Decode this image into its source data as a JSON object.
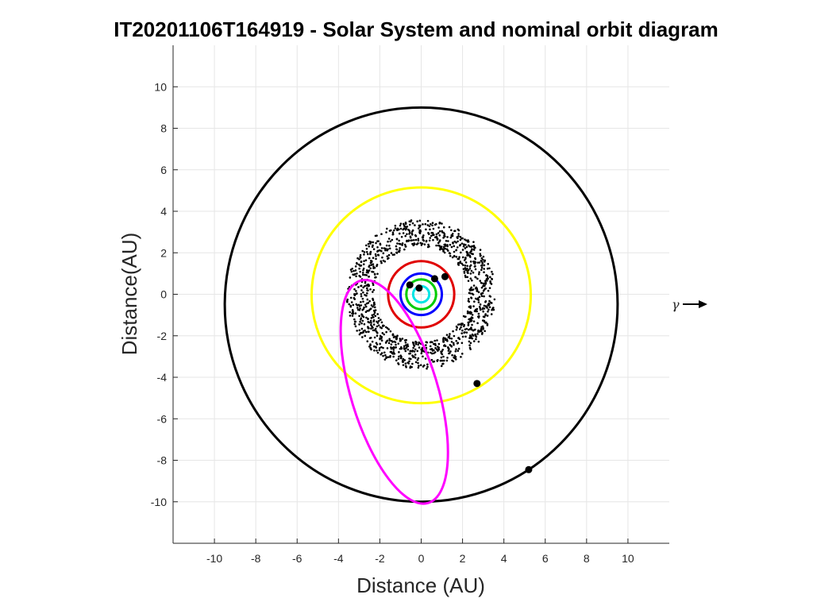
{
  "chart_data": {
    "type": "scatter",
    "title": "IT20201106T164919 - Solar System and nominal orbit diagram",
    "xlabel": "Distance (AU)",
    "ylabel": "Distance(AU)",
    "xlim": [
      -12,
      12
    ],
    "ylim": [
      -12,
      12
    ],
    "xticks": [
      -10,
      -8,
      -6,
      -4,
      -2,
      0,
      2,
      4,
      6,
      8,
      10
    ],
    "yticks": [
      -10,
      -8,
      -6,
      -4,
      -2,
      0,
      2,
      4,
      6,
      8,
      10
    ],
    "grid": true,
    "direction_marker": "γ",
    "orbits": [
      {
        "color": "#00e5e5",
        "center": [
          0,
          0
        ],
        "rx": 0.39,
        "ry": 0.39
      },
      {
        "color": "#00cc00",
        "center": [
          0,
          0
        ],
        "rx": 0.72,
        "ry": 0.72
      },
      {
        "color": "#0000ff",
        "center": [
          0,
          0
        ],
        "rx": 1.0,
        "ry": 1.0
      },
      {
        "color": "#e00000",
        "center": [
          0,
          0
        ],
        "rx": 1.6,
        "ry": 1.6
      },
      {
        "color": "#ffff00",
        "center": [
          0,
          -0.05
        ],
        "rx": 5.3,
        "ry": 5.2
      },
      {
        "color": "#000000",
        "center": [
          0,
          -0.5
        ],
        "rx": 9.5,
        "ry": 9.5
      },
      {
        "color": "#ff00ff",
        "center": [
          -1.3,
          -4.7
        ],
        "rx": 2.1,
        "ry": 5.6,
        "rotation_deg": 17
      }
    ],
    "bodies": [
      {
        "x": -0.55,
        "y": 0.45
      },
      {
        "x": -0.1,
        "y": 0.3
      },
      {
        "x": 0.65,
        "y": 0.75
      },
      {
        "x": 1.15,
        "y": 0.85
      },
      {
        "x": 2.7,
        "y": -4.3
      },
      {
        "x": 5.2,
        "y": -8.45
      }
    ],
    "asteroid_belt": {
      "color": "#000000",
      "inner_radius": 2.3,
      "outer_radius": 3.6,
      "count": 1200
    }
  }
}
